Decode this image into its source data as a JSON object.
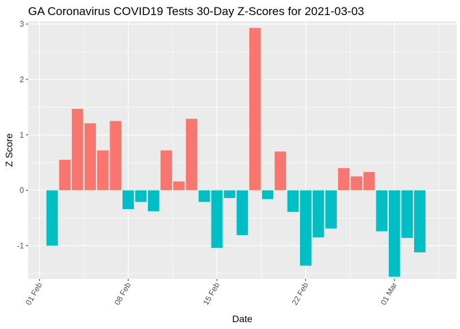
{
  "chart_data": {
    "type": "bar",
    "title": "GA Coronavirus COVID19 Tests 30-Day Z-Scores for 2021-03-03",
    "xlabel": "Date",
    "ylabel": "Z Score",
    "ylim": [
      -1.6,
      3.05
    ],
    "yticks": [
      -1,
      0,
      1,
      2,
      3
    ],
    "xlim": [
      -0.9,
      32.9
    ],
    "xticks": [
      {
        "label": "01 Feb",
        "pos": 0
      },
      {
        "label": "08 Feb",
        "pos": 7
      },
      {
        "label": "15 Feb",
        "pos": 14
      },
      {
        "label": "22 Feb",
        "pos": 21
      },
      {
        "label": "01 Mar",
        "pos": 28
      }
    ],
    "x_minor_breaks": [
      3.5,
      10.5,
      17.5,
      24.5,
      31.5
    ],
    "y_minor_breaks": [
      -1.5,
      -0.5,
      0.5,
      1.5,
      2.5
    ],
    "grid": true,
    "legend": "none",
    "colors": {
      "positive": "#F8766D",
      "negative": "#00BFC4",
      "panel": "#EBEBEB",
      "grid": "#FFFFFF"
    },
    "dates": [
      "2021-02-02",
      "2021-02-03",
      "2021-02-04",
      "2021-02-05",
      "2021-02-06",
      "2021-02-07",
      "2021-02-08",
      "2021-02-09",
      "2021-02-10",
      "2021-02-11",
      "2021-02-12",
      "2021-02-13",
      "2021-02-14",
      "2021-02-15",
      "2021-02-16",
      "2021-02-17",
      "2021-02-18",
      "2021-02-19",
      "2021-02-20",
      "2021-02-21",
      "2021-02-22",
      "2021-02-23",
      "2021-02-24",
      "2021-02-25",
      "2021-02-26",
      "2021-02-27",
      "2021-02-28",
      "2021-03-01",
      "2021-03-02",
      "2021-03-03"
    ],
    "x": [
      1,
      2,
      3,
      4,
      5,
      6,
      7,
      8,
      9,
      10,
      11,
      12,
      13,
      14,
      15,
      16,
      17,
      18,
      19,
      20,
      21,
      22,
      23,
      24,
      25,
      26,
      27,
      28,
      29,
      30
    ],
    "values": [
      -1.0,
      0.55,
      1.47,
      1.21,
      0.72,
      1.25,
      -0.34,
      -0.21,
      -0.38,
      0.72,
      0.16,
      1.29,
      -0.21,
      -1.04,
      -0.14,
      -0.81,
      2.93,
      -0.16,
      0.7,
      -0.39,
      -1.36,
      -0.85,
      -0.69,
      0.4,
      0.25,
      0.33,
      -0.74,
      -1.56,
      -0.86,
      -1.12
    ]
  }
}
